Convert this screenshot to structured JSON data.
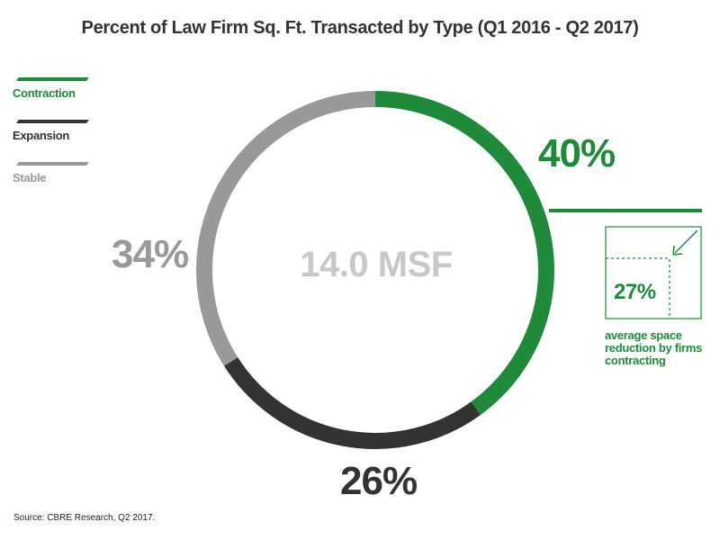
{
  "chart_data": {
    "type": "pie",
    "title": "Percent of Law Firm Sq. Ft. Transacted by Type (Q1 2016 - Q2 2017)",
    "center_label": "14.0 MSF",
    "slices": [
      {
        "name": "Contraction",
        "value": 40,
        "label": "40%",
        "color": "#1e8a3a"
      },
      {
        "name": "Expansion",
        "value": 26,
        "label": "26%",
        "color": "#333333"
      },
      {
        "name": "Stable",
        "value": 34,
        "label": "34%",
        "color": "#999999"
      }
    ],
    "legend_position": "top-left",
    "callout": {
      "value": "27%",
      "caption": "average space reduction by firms contracting"
    },
    "source": "Source: CBRE Research, Q2 2017."
  }
}
